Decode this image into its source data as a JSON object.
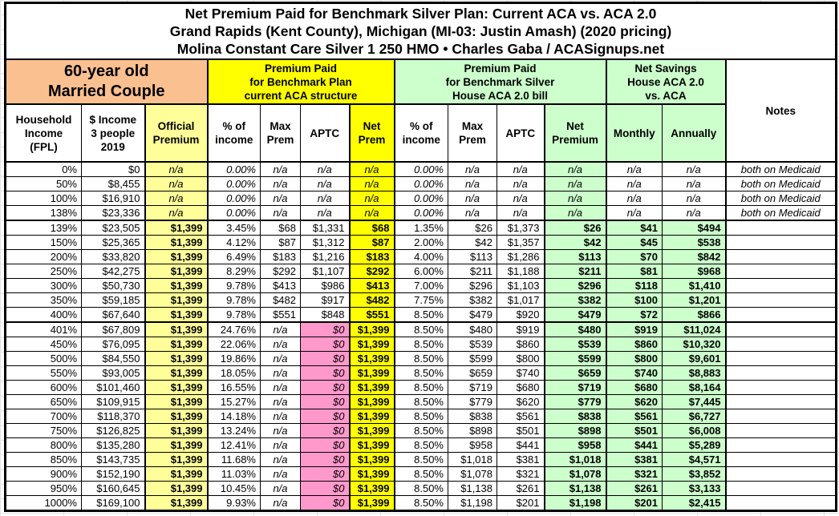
{
  "title": {
    "line1": "Net Premium Paid for Benchmark Silver Plan: Current ACA vs. ACA 2.0",
    "line2": "Grand Rapids (Kent County), Michigan (MI-03: Justin Amash) (2020 pricing)",
    "line3": "Molina Constant Care Silver 1 250 HMO • Charles Gaba / ACASignups.net"
  },
  "groups": {
    "household": "60-year old\nMarried Couple",
    "current_aca": "Premium Paid\nfor Benchmark Plan\ncurrent ACA structure",
    "aca2": "Premium Paid\nfor Benchmark Silver\nHouse ACA 2.0 bill",
    "savings": "Net Savings\nHouse ACA 2.0\nvs. ACA",
    "notes": "Notes"
  },
  "columns": [
    "Household\nIncome\n(FPL)",
    "$ Income\n3 people\n2019",
    "Official\nPremium",
    "% of\nincome",
    "Max\nPrem",
    "APTC",
    "Net\nPrem",
    "% of\nincome",
    "Max\nPrem",
    "APTC",
    "Net\nPremium",
    "Monthly",
    "Annually"
  ],
  "colors": {
    "household_group": "#FAC090",
    "current_aca_group": "#FFFF00",
    "official_premium_column": "#FFFF99",
    "aca2_group": "#CCFFCC",
    "no_subsidy_aptc_cell": "#FF99CC",
    "border": "#000000",
    "background": "#FFFFFF"
  },
  "table": {
    "rows": [
      {
        "kind": "medicaid",
        "fpl": "0%",
        "income": "$0",
        "official": "n/a",
        "aca_pct": "0.00%",
        "aca_max": "n/a",
        "aca_aptc": "n/a",
        "aca_net": "n/a",
        "aca2_pct": "0.00%",
        "aca2_max": "n/a",
        "aca2_aptc": "n/a",
        "aca2_net": "n/a",
        "monthly": "n/a",
        "annually": "n/a",
        "notes": "both on Medicaid"
      },
      {
        "kind": "medicaid",
        "fpl": "50%",
        "income": "$8,455",
        "official": "n/a",
        "aca_pct": "0.00%",
        "aca_max": "n/a",
        "aca_aptc": "n/a",
        "aca_net": "n/a",
        "aca2_pct": "0.00%",
        "aca2_max": "n/a",
        "aca2_aptc": "n/a",
        "aca2_net": "n/a",
        "monthly": "n/a",
        "annually": "n/a",
        "notes": "both on Medicaid"
      },
      {
        "kind": "medicaid",
        "fpl": "100%",
        "income": "$16,910",
        "official": "n/a",
        "aca_pct": "0.00%",
        "aca_max": "n/a",
        "aca_aptc": "n/a",
        "aca_net": "n/a",
        "aca2_pct": "0.00%",
        "aca2_max": "n/a",
        "aca2_aptc": "n/a",
        "aca2_net": "n/a",
        "monthly": "n/a",
        "annually": "n/a",
        "notes": "both on Medicaid"
      },
      {
        "kind": "medicaid",
        "fpl": "138%",
        "income": "$23,336",
        "official": "n/a",
        "aca_pct": "0.00%",
        "aca_max": "n/a",
        "aca_aptc": "n/a",
        "aca_net": "n/a",
        "aca2_pct": "0.00%",
        "aca2_max": "n/a",
        "aca2_aptc": "n/a",
        "aca2_net": "n/a",
        "monthly": "n/a",
        "annually": "n/a",
        "notes": "both on Medicaid",
        "sep": true
      },
      {
        "kind": "subsidized",
        "fpl": "139%",
        "income": "$23,505",
        "official": "$1,399",
        "aca_pct": "3.45%",
        "aca_max": "$68",
        "aca_aptc": "$1,331",
        "aca_net": "$68",
        "aca2_pct": "1.35%",
        "aca2_max": "$26",
        "aca2_aptc": "$1,373",
        "aca2_net": "$26",
        "monthly": "$41",
        "annually": "$494",
        "notes": ""
      },
      {
        "kind": "subsidized",
        "fpl": "150%",
        "income": "$25,365",
        "official": "$1,399",
        "aca_pct": "4.12%",
        "aca_max": "$87",
        "aca_aptc": "$1,312",
        "aca_net": "$87",
        "aca2_pct": "2.00%",
        "aca2_max": "$42",
        "aca2_aptc": "$1,357",
        "aca2_net": "$42",
        "monthly": "$45",
        "annually": "$538",
        "notes": ""
      },
      {
        "kind": "subsidized",
        "fpl": "200%",
        "income": "$33,820",
        "official": "$1,399",
        "aca_pct": "6.49%",
        "aca_max": "$183",
        "aca_aptc": "$1,216",
        "aca_net": "$183",
        "aca2_pct": "4.00%",
        "aca2_max": "$113",
        "aca2_aptc": "$1,286",
        "aca2_net": "$113",
        "monthly": "$70",
        "annually": "$842",
        "notes": ""
      },
      {
        "kind": "subsidized",
        "fpl": "250%",
        "income": "$42,275",
        "official": "$1,399",
        "aca_pct": "8.29%",
        "aca_max": "$292",
        "aca_aptc": "$1,107",
        "aca_net": "$292",
        "aca2_pct": "6.00%",
        "aca2_max": "$211",
        "aca2_aptc": "$1,188",
        "aca2_net": "$211",
        "monthly": "$81",
        "annually": "$968",
        "notes": ""
      },
      {
        "kind": "subsidized",
        "fpl": "300%",
        "income": "$50,730",
        "official": "$1,399",
        "aca_pct": "9.78%",
        "aca_max": "$413",
        "aca_aptc": "$986",
        "aca_net": "$413",
        "aca2_pct": "7.00%",
        "aca2_max": "$296",
        "aca2_aptc": "$1,103",
        "aca2_net": "$296",
        "monthly": "$118",
        "annually": "$1,410",
        "notes": ""
      },
      {
        "kind": "subsidized",
        "fpl": "350%",
        "income": "$59,185",
        "official": "$1,399",
        "aca_pct": "9.78%",
        "aca_max": "$482",
        "aca_aptc": "$917",
        "aca_net": "$482",
        "aca2_pct": "7.75%",
        "aca2_max": "$382",
        "aca2_aptc": "$1,017",
        "aca2_net": "$382",
        "monthly": "$100",
        "annually": "$1,201",
        "notes": ""
      },
      {
        "kind": "subsidized",
        "fpl": "400%",
        "income": "$67,640",
        "official": "$1,399",
        "aca_pct": "9.78%",
        "aca_max": "$551",
        "aca_aptc": "$848",
        "aca_net": "$551",
        "aca2_pct": "8.50%",
        "aca2_max": "$479",
        "aca2_aptc": "$920",
        "aca2_net": "$479",
        "monthly": "$72",
        "annually": "$866",
        "notes": "",
        "sep": true
      },
      {
        "kind": "cliff",
        "fpl": "401%",
        "income": "$67,809",
        "official": "$1,399",
        "aca_pct": "24.76%",
        "aca_max": "n/a",
        "aca_aptc": "$0",
        "aca_net": "$1,399",
        "aca2_pct": "8.50%",
        "aca2_max": "$480",
        "aca2_aptc": "$919",
        "aca2_net": "$480",
        "monthly": "$919",
        "annually": "$11,024",
        "notes": ""
      },
      {
        "kind": "cliff",
        "fpl": "450%",
        "income": "$76,095",
        "official": "$1,399",
        "aca_pct": "22.06%",
        "aca_max": "n/a",
        "aca_aptc": "$0",
        "aca_net": "$1,399",
        "aca2_pct": "8.50%",
        "aca2_max": "$539",
        "aca2_aptc": "$860",
        "aca2_net": "$539",
        "monthly": "$860",
        "annually": "$10,320",
        "notes": ""
      },
      {
        "kind": "cliff",
        "fpl": "500%",
        "income": "$84,550",
        "official": "$1,399",
        "aca_pct": "19.86%",
        "aca_max": "n/a",
        "aca_aptc": "$0",
        "aca_net": "$1,399",
        "aca2_pct": "8.50%",
        "aca2_max": "$599",
        "aca2_aptc": "$800",
        "aca2_net": "$599",
        "monthly": "$800",
        "annually": "$9,601",
        "notes": ""
      },
      {
        "kind": "cliff",
        "fpl": "550%",
        "income": "$93,005",
        "official": "$1,399",
        "aca_pct": "18.05%",
        "aca_max": "n/a",
        "aca_aptc": "$0",
        "aca_net": "$1,399",
        "aca2_pct": "8.50%",
        "aca2_max": "$659",
        "aca2_aptc": "$740",
        "aca2_net": "$659",
        "monthly": "$740",
        "annually": "$8,883",
        "notes": ""
      },
      {
        "kind": "cliff",
        "fpl": "600%",
        "income": "$101,460",
        "official": "$1,399",
        "aca_pct": "16.55%",
        "aca_max": "n/a",
        "aca_aptc": "$0",
        "aca_net": "$1,399",
        "aca2_pct": "8.50%",
        "aca2_max": "$719",
        "aca2_aptc": "$680",
        "aca2_net": "$719",
        "monthly": "$680",
        "annually": "$8,164",
        "notes": ""
      },
      {
        "kind": "cliff",
        "fpl": "650%",
        "income": "$109,915",
        "official": "$1,399",
        "aca_pct": "15.27%",
        "aca_max": "n/a",
        "aca_aptc": "$0",
        "aca_net": "$1,399",
        "aca2_pct": "8.50%",
        "aca2_max": "$779",
        "aca2_aptc": "$620",
        "aca2_net": "$779",
        "monthly": "$620",
        "annually": "$7,445",
        "notes": ""
      },
      {
        "kind": "cliff",
        "fpl": "700%",
        "income": "$118,370",
        "official": "$1,399",
        "aca_pct": "14.18%",
        "aca_max": "n/a",
        "aca_aptc": "$0",
        "aca_net": "$1,399",
        "aca2_pct": "8.50%",
        "aca2_max": "$838",
        "aca2_aptc": "$561",
        "aca2_net": "$838",
        "monthly": "$561",
        "annually": "$6,727",
        "notes": ""
      },
      {
        "kind": "cliff",
        "fpl": "750%",
        "income": "$126,825",
        "official": "$1,399",
        "aca_pct": "13.24%",
        "aca_max": "n/a",
        "aca_aptc": "$0",
        "aca_net": "$1,399",
        "aca2_pct": "8.50%",
        "aca2_max": "$898",
        "aca2_aptc": "$501",
        "aca2_net": "$898",
        "monthly": "$501",
        "annually": "$6,008",
        "notes": ""
      },
      {
        "kind": "cliff",
        "fpl": "800%",
        "income": "$135,280",
        "official": "$1,399",
        "aca_pct": "12.41%",
        "aca_max": "n/a",
        "aca_aptc": "$0",
        "aca_net": "$1,399",
        "aca2_pct": "8.50%",
        "aca2_max": "$958",
        "aca2_aptc": "$441",
        "aca2_net": "$958",
        "monthly": "$441",
        "annually": "$5,289",
        "notes": ""
      },
      {
        "kind": "cliff",
        "fpl": "850%",
        "income": "$143,735",
        "official": "$1,399",
        "aca_pct": "11.68%",
        "aca_max": "n/a",
        "aca_aptc": "$0",
        "aca_net": "$1,399",
        "aca2_pct": "8.50%",
        "aca2_max": "$1,018",
        "aca2_aptc": "$381",
        "aca2_net": "$1,018",
        "monthly": "$381",
        "annually": "$4,571",
        "notes": ""
      },
      {
        "kind": "cliff",
        "fpl": "900%",
        "income": "$152,190",
        "official": "$1,399",
        "aca_pct": "11.03%",
        "aca_max": "n/a",
        "aca_aptc": "$0",
        "aca_net": "$1,399",
        "aca2_pct": "8.50%",
        "aca2_max": "$1,078",
        "aca2_aptc": "$321",
        "aca2_net": "$1,078",
        "monthly": "$321",
        "annually": "$3,852",
        "notes": ""
      },
      {
        "kind": "cliff",
        "fpl": "950%",
        "income": "$160,645",
        "official": "$1,399",
        "aca_pct": "10.45%",
        "aca_max": "n/a",
        "aca_aptc": "$0",
        "aca_net": "$1,399",
        "aca2_pct": "8.50%",
        "aca2_max": "$1,138",
        "aca2_aptc": "$261",
        "aca2_net": "$1,138",
        "monthly": "$261",
        "annually": "$3,133",
        "notes": ""
      },
      {
        "kind": "cliff",
        "fpl": "1000%",
        "income": "$169,100",
        "official": "$1,399",
        "aca_pct": "9.93%",
        "aca_max": "n/a",
        "aca_aptc": "$0",
        "aca_net": "$1,399",
        "aca2_pct": "8.50%",
        "aca2_max": "$1,198",
        "aca2_aptc": "$201",
        "aca2_net": "$1,198",
        "monthly": "$201",
        "annually": "$2,415",
        "notes": ""
      }
    ]
  }
}
